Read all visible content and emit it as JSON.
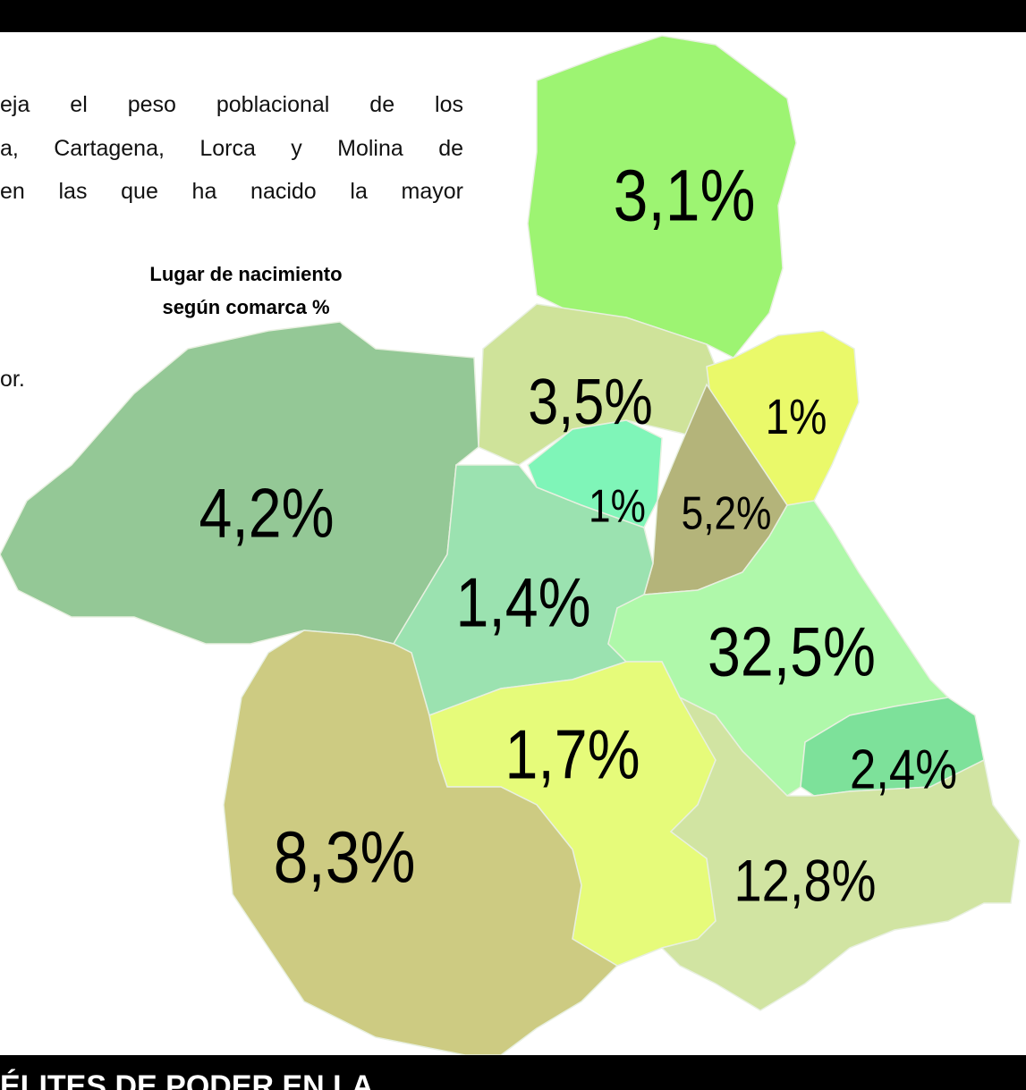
{
  "text": {
    "lines": [
      "eja el peso poblacional de los",
      "a, Cartagena, Lorca y Molina de",
      "en las que ha nacido la mayor",
      "or."
    ]
  },
  "chart_data": {
    "type": "map",
    "title": "Lugar de nacimiento según comarca %",
    "values": [
      3.1,
      3.5,
      1,
      1,
      5.2,
      4.2,
      1.4,
      32.5,
      2.4,
      1.7,
      8.3,
      12.8
    ],
    "value_labels": [
      "3,1%",
      "3,5%",
      "1%",
      "1%",
      "5,2%",
      "4,2%",
      "1,4%",
      "32,5%",
      "2,4%",
      "1,7%",
      "8,3%",
      "12,8%"
    ],
    "colors": [
      "#9df472",
      "#cfe39a",
      "#eaf96a",
      "#7ff5b8",
      "#b4b47a",
      "#94c896",
      "#9be2b0",
      "#aff8aa",
      "#7de19a",
      "#e6fb7a",
      "#cdcb82",
      "#d1e4a2"
    ]
  },
  "footer": "ÉLITES DE PODER EN LA"
}
